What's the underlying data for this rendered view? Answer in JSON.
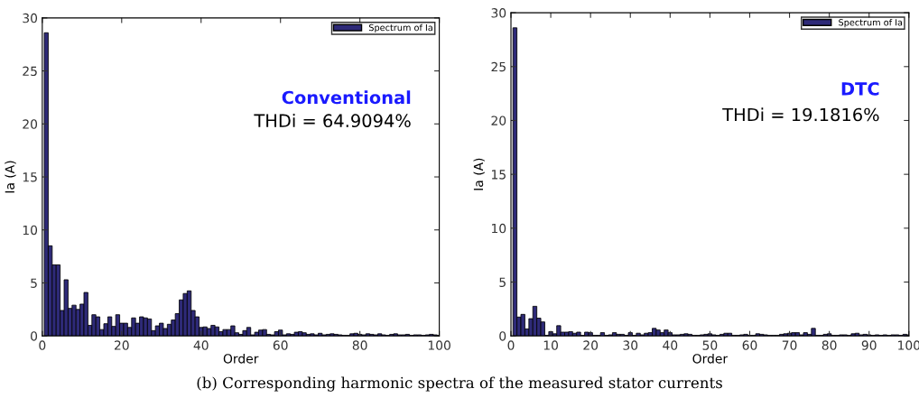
{
  "chart_data": [
    {
      "type": "bar",
      "xlabel": "Order",
      "ylabel": "Ia (A)",
      "xlim": [
        0,
        100
      ],
      "ylim": [
        0,
        30
      ],
      "xticks": [
        0,
        20,
        40,
        60,
        80,
        100
      ],
      "yticks": [
        0,
        5,
        10,
        15,
        20,
        25,
        30
      ],
      "grid": false,
      "legend": "top right",
      "annotations": [
        "Conventional",
        "THDi = 64.9094%"
      ],
      "series": [
        {
          "name": "Spectrum of Ia",
          "color": "#2e2a78",
          "x": [
            1,
            2,
            3,
            4,
            5,
            6,
            7,
            8,
            9,
            10,
            11,
            12,
            13,
            14,
            15,
            16,
            17,
            18,
            19,
            20,
            21,
            22,
            23,
            24,
            25,
            26,
            27,
            28,
            29,
            30,
            31,
            32,
            33,
            34,
            35,
            36,
            37,
            38,
            39,
            40,
            41,
            42,
            43,
            44,
            45,
            46,
            47,
            48,
            49,
            50,
            51,
            52,
            53,
            54,
            55,
            56,
            57,
            58,
            59,
            60,
            61,
            62,
            63,
            64,
            65,
            66,
            67,
            68,
            69,
            70,
            71,
            72,
            73,
            74,
            75,
            76,
            77,
            78,
            79,
            80,
            81,
            82,
            83,
            84,
            85,
            86,
            87,
            88,
            89,
            90,
            91,
            92,
            93,
            94,
            95,
            96,
            97,
            98,
            99,
            100
          ],
          "values": [
            28.6,
            8.5,
            6.7,
            6.7,
            2.4,
            5.3,
            2.6,
            2.9,
            2.5,
            3.0,
            4.1,
            1.0,
            2.0,
            1.8,
            0.6,
            1.15,
            1.8,
            0.9,
            2.0,
            1.2,
            1.2,
            0.8,
            1.7,
            1.2,
            1.8,
            1.7,
            1.6,
            0.5,
            0.95,
            1.2,
            0.7,
            1.1,
            1.5,
            2.1,
            3.4,
            4.0,
            4.25,
            2.4,
            1.8,
            0.8,
            0.85,
            0.7,
            1.0,
            0.85,
            0.4,
            0.6,
            0.6,
            0.95,
            0.3,
            0.15,
            0.5,
            0.8,
            0.1,
            0.35,
            0.55,
            0.6,
            0.15,
            0.1,
            0.4,
            0.55,
            0.1,
            0.2,
            0.15,
            0.35,
            0.4,
            0.3,
            0.15,
            0.2,
            0.1,
            0.25,
            0.1,
            0.15,
            0.2,
            0.15,
            0.1,
            0.05,
            0.05,
            0.2,
            0.25,
            0.15,
            0.1,
            0.2,
            0.15,
            0.1,
            0.2,
            0.1,
            0.05,
            0.15,
            0.2,
            0.1,
            0.1,
            0.15,
            0.05,
            0.1,
            0.1,
            0.05,
            0.1,
            0.15,
            0.1,
            0.05
          ]
        }
      ]
    },
    {
      "type": "bar",
      "xlabel": "Order",
      "ylabel": "Ia (A)",
      "xlim": [
        0,
        100
      ],
      "ylim": [
        0,
        30
      ],
      "xticks": [
        0,
        10,
        20,
        30,
        40,
        50,
        60,
        70,
        80,
        90,
        100
      ],
      "yticks": [
        0,
        5,
        10,
        15,
        20,
        25,
        30
      ],
      "grid": false,
      "legend": "top right",
      "annotations": [
        "DTC",
        "THDi = 19.1816%",
        "(b) Corresponding harmonic spectra of the measured stator currents"
      ],
      "series": [
        {
          "name": "Spectrum of Ia",
          "color": "#2e2a78",
          "x": [
            1,
            2,
            3,
            4,
            5,
            6,
            7,
            8,
            9,
            10,
            11,
            12,
            13,
            14,
            15,
            16,
            17,
            18,
            19,
            20,
            21,
            22,
            23,
            24,
            25,
            26,
            27,
            28,
            29,
            30,
            31,
            32,
            33,
            34,
            35,
            36,
            37,
            38,
            39,
            40,
            41,
            42,
            43,
            44,
            45,
            46,
            47,
            48,
            49,
            50,
            51,
            52,
            53,
            54,
            55,
            56,
            57,
            58,
            59,
            60,
            61,
            62,
            63,
            64,
            65,
            66,
            67,
            68,
            69,
            70,
            71,
            72,
            73,
            74,
            75,
            76,
            77,
            78,
            79,
            80,
            81,
            82,
            83,
            84,
            85,
            86,
            87,
            88,
            89,
            90,
            91,
            92,
            93,
            94,
            95,
            96,
            97,
            98,
            99,
            100
          ],
          "values": [
            28.6,
            1.75,
            2.0,
            0.65,
            1.6,
            2.75,
            1.65,
            1.3,
            0.05,
            0.4,
            0.2,
            0.95,
            0.35,
            0.35,
            0.4,
            0.25,
            0.35,
            0.05,
            0.35,
            0.3,
            0.05,
            0.05,
            0.3,
            0.05,
            0.1,
            0.3,
            0.15,
            0.15,
            0.05,
            0.3,
            0.05,
            0.25,
            0.1,
            0.25,
            0.3,
            0.7,
            0.55,
            0.3,
            0.55,
            0.3,
            0.1,
            0.1,
            0.15,
            0.2,
            0.15,
            0.05,
            0.05,
            0.1,
            0.15,
            0.2,
            0.1,
            0.05,
            0.15,
            0.25,
            0.25,
            0.05,
            0.05,
            0.1,
            0.15,
            0.05,
            0.05,
            0.2,
            0.15,
            0.1,
            0.05,
            0.05,
            0.05,
            0.15,
            0.2,
            0.25,
            0.3,
            0.3,
            0.1,
            0.3,
            0.15,
            0.7,
            0.05,
            0.05,
            0.15,
            0.2,
            0.05,
            0.05,
            0.1,
            0.1,
            0.05,
            0.2,
            0.25,
            0.1,
            0.15,
            0.1,
            0.05,
            0.1,
            0.05,
            0.1,
            0.05,
            0.1,
            0.1,
            0.05,
            0.15,
            0.1
          ]
        }
      ]
    }
  ]
}
